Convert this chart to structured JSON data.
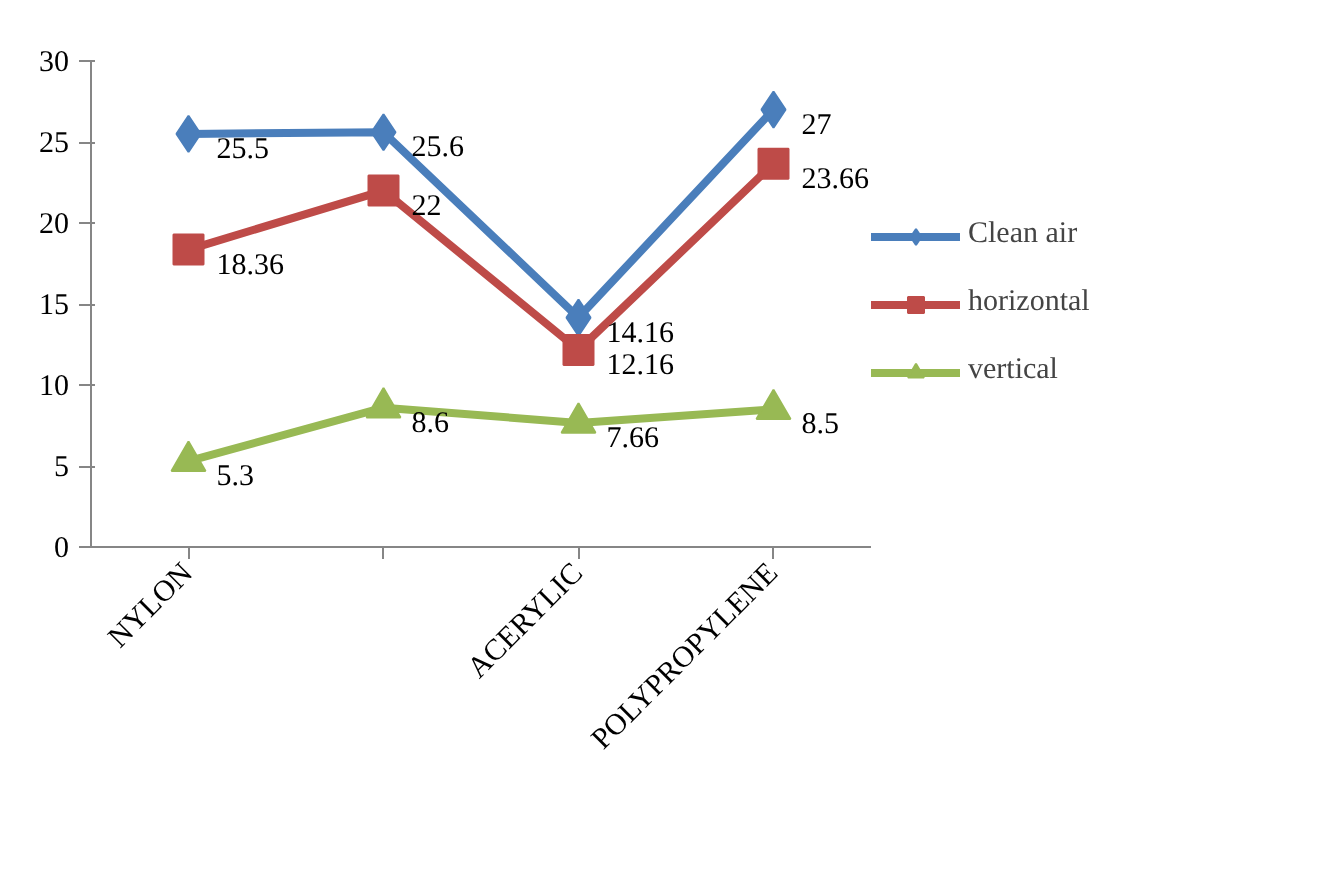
{
  "chart_data": {
    "type": "line",
    "categories": [
      "NYLON",
      null,
      "ACERYLIC",
      "POLYPROPYLENE"
    ],
    "series": [
      {
        "name": "Clean air",
        "color": "#4a7ebb",
        "marker": "diamond",
        "values": [
          25.5,
          25.6,
          14.16,
          27
        ]
      },
      {
        "name": "horizontal",
        "color": "#be4b48",
        "marker": "square",
        "values": [
          18.36,
          22,
          12.16,
          23.66
        ]
      },
      {
        "name": "vertical",
        "color": "#98b954",
        "marker": "triangle",
        "values": [
          5.3,
          8.6,
          7.66,
          8.5
        ]
      }
    ],
    "ylim": [
      0,
      30
    ],
    "yticks": [
      0,
      5,
      10,
      15,
      20,
      25,
      30
    ],
    "grid": false,
    "legend": "right",
    "data_labels": true,
    "line_style": "solid"
  }
}
